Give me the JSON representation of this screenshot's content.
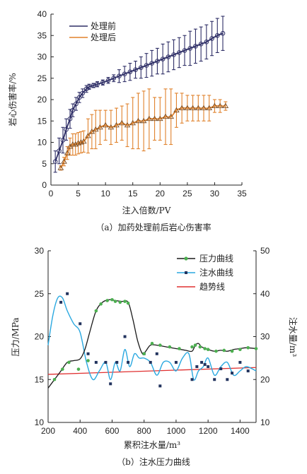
{
  "chart_data": [
    {
      "type": "line",
      "xlabel": "注入倍数/PV",
      "ylabel": "岩心伤害率/%",
      "caption": "（a）加药处理前后岩心伤害率",
      "xlim": [
        0,
        35
      ],
      "ylim": [
        0,
        40
      ],
      "xticks": [
        0,
        5,
        10,
        15,
        20,
        25,
        30,
        35
      ],
      "yticks": [
        0,
        5,
        10,
        15,
        20,
        25,
        30,
        35,
        40
      ],
      "legend_position": "top-left",
      "series": [
        {
          "name": "处理前",
          "color": "#2e2e66",
          "marker": "circle",
          "x": [
            0.8,
            1.5,
            2.2,
            2.8,
            3.5,
            4.0,
            4.6,
            5.2,
            5.8,
            6.5,
            7.0,
            7.8,
            8.5,
            9.5,
            10.5,
            11.5,
            12.5,
            13.5,
            14.5,
            15.5,
            16.5,
            17.5,
            18.5,
            19.5,
            20.5,
            21.5,
            22.5,
            23.5,
            24.5,
            25.5,
            26.5,
            27.5,
            28.5,
            29.5,
            30.5,
            31.5
          ],
          "y": [
            5.5,
            8.0,
            10.5,
            13.0,
            15.5,
            17.5,
            19.0,
            20.5,
            21.5,
            22.5,
            23.0,
            23.3,
            23.6,
            24.0,
            24.5,
            25.0,
            25.5,
            26.0,
            26.5,
            27.0,
            27.5,
            28.0,
            28.5,
            29.0,
            29.5,
            30.0,
            30.5,
            31.0,
            31.5,
            32.0,
            32.5,
            33.0,
            33.5,
            34.3,
            35.0,
            35.5
          ],
          "err": [
            2.5,
            3.0,
            3.0,
            2.5,
            2.2,
            1.5,
            1.5,
            1.2,
            1.0,
            0.8,
            0.6,
            0.5,
            0.6,
            0.6,
            0.7,
            0.8,
            1.5,
            1.8,
            2.0,
            2.0,
            2.5,
            2.8,
            3.0,
            3.0,
            3.5,
            3.5,
            3.5,
            3.5,
            3.5,
            4.0,
            4.0,
            4.0,
            4.0,
            4.0,
            4.0,
            4.0
          ]
        },
        {
          "name": "处理后",
          "color": "#e0822c",
          "marker": "triangle",
          "x": [
            1.8,
            2.4,
            3.0,
            3.5,
            4.0,
            4.5,
            5.0,
            5.5,
            6.0,
            6.8,
            7.5,
            8.2,
            9.0,
            10.0,
            11.0,
            12.0,
            13.0,
            14.0,
            15.0,
            16.0,
            17.0,
            18.0,
            19.0,
            20.0,
            21.0,
            22.0,
            23.0,
            24.0,
            25.0,
            26.0,
            27.0,
            28.0,
            29.0,
            30.0,
            31.0,
            32.0
          ],
          "y": [
            4.0,
            5.5,
            7.5,
            9.0,
            9.5,
            9.5,
            9.8,
            10.0,
            10.2,
            11.5,
            12.5,
            13.0,
            13.5,
            14.0,
            13.5,
            14.0,
            14.5,
            14.0,
            14.5,
            15.0,
            15.0,
            15.5,
            15.5,
            15.5,
            16.0,
            16.0,
            17.5,
            18.0,
            18.0,
            18.0,
            18.0,
            18.0,
            18.0,
            18.5,
            18.5,
            18.5
          ],
          "err": [
            0.5,
            1.0,
            1.5,
            2.0,
            2.5,
            2.5,
            2.5,
            2.5,
            2.5,
            4.0,
            4.0,
            4.5,
            4.0,
            3.5,
            4.0,
            4.0,
            4.0,
            5.0,
            6.0,
            6.5,
            7.0,
            7.0,
            5.0,
            5.0,
            6.5,
            6.5,
            4.0,
            3.5,
            3.0,
            3.0,
            3.0,
            3.0,
            3.0,
            1.5,
            1.5,
            1.0
          ]
        }
      ]
    },
    {
      "type": "line",
      "xlabel": "累积注水量/m³",
      "ylabel": "压力/MPa",
      "y2label": "注水量/m³",
      "caption": "（b）注水压力曲线",
      "xlim": [
        200,
        1500
      ],
      "ylim": [
        10,
        30
      ],
      "y2lim": [
        10,
        50
      ],
      "xticks": [
        200,
        400,
        600,
        800,
        1000,
        1200,
        1400
      ],
      "yticks": [
        10,
        15,
        20,
        25,
        30
      ],
      "y2ticks": [
        10,
        20,
        30,
        40,
        50
      ],
      "legend_position": "top-right",
      "series": [
        {
          "name": "压力曲线",
          "axis": "left",
          "color": "#1a1a1a",
          "marker_color": "#4caf50",
          "marker": "circle",
          "curve_x": [
            200,
            240,
            280,
            320,
            360,
            400,
            430,
            460,
            500,
            540,
            580,
            620,
            660,
            700,
            730,
            760,
            790,
            810,
            840,
            880,
            940,
            1000,
            1060,
            1100,
            1120,
            1140,
            1160,
            1200,
            1240,
            1280,
            1320,
            1360,
            1400,
            1440,
            1500
          ],
          "curve_y": [
            14.0,
            15.0,
            16.0,
            17.0,
            17.2,
            17.4,
            18.5,
            20.5,
            23.0,
            24.0,
            24.3,
            24.2,
            24.1,
            24.0,
            22.0,
            19.5,
            18.0,
            18.3,
            19.0,
            19.0,
            18.8,
            18.6,
            18.4,
            18.3,
            19.0,
            19.2,
            18.8,
            18.5,
            18.3,
            18.4,
            18.3,
            18.5,
            18.6,
            18.7,
            18.6
          ],
          "marker_x": [
            240,
            290,
            330,
            390,
            450,
            500,
            530,
            570,
            600,
            620,
            650,
            680,
            700,
            800,
            850,
            900,
            960,
            1020,
            1100,
            1120,
            1150,
            1180,
            1200,
            1250,
            1300,
            1350,
            1400,
            1450,
            1500
          ],
          "marker_y": [
            15.0,
            16.2,
            17.0,
            16.2,
            17.2,
            23.0,
            23.8,
            24.2,
            24.3,
            24.1,
            24.0,
            24.1,
            23.9,
            18.0,
            19.2,
            19.0,
            18.8,
            18.6,
            18.8,
            19.0,
            18.8,
            18.6,
            18.5,
            18.3,
            18.4,
            18.3,
            18.5,
            18.7,
            18.6
          ]
        },
        {
          "name": "注水曲线",
          "axis": "right",
          "color": "#29a8e0",
          "marker_color": "#22335e",
          "marker": "square",
          "curve_x": [
            200,
            230,
            260,
            290,
            320,
            360,
            400,
            440,
            480,
            520,
            560,
            590,
            620,
            650,
            680,
            710,
            740,
            770,
            800,
            840,
            880,
            920,
            960,
            1000,
            1040,
            1080,
            1110,
            1140,
            1170,
            1200,
            1240,
            1280,
            1320,
            1360,
            1400,
            1440,
            1500
          ],
          "curve_y": [
            28,
            35,
            39,
            39,
            36,
            33,
            31,
            24,
            20,
            22,
            24,
            20,
            24,
            22,
            27,
            23,
            26,
            25,
            25,
            24,
            21,
            24,
            24,
            22,
            25,
            26,
            20,
            22,
            23,
            25,
            21,
            23,
            24,
            21,
            22,
            23,
            22
          ],
          "marker_x": [
            280,
            320,
            400,
            450,
            500,
            560,
            590,
            630,
            680,
            700,
            800,
            840,
            880,
            900,
            1000,
            1100,
            1130,
            1160,
            1180,
            1200,
            1240,
            1280,
            1320,
            1350,
            1400,
            1450
          ],
          "marker_y": [
            38,
            40,
            33,
            26,
            24,
            24,
            19,
            24,
            30,
            24,
            26,
            24,
            26,
            18.5,
            24,
            20,
            23,
            24,
            23.5,
            23,
            20,
            22.5,
            20,
            21.5,
            24,
            22
          ]
        },
        {
          "name": "趋势线",
          "axis": "left",
          "color": "#e03030",
          "x": [
            200,
            1500
          ],
          "y": [
            15.6,
            16.4
          ]
        }
      ]
    }
  ]
}
